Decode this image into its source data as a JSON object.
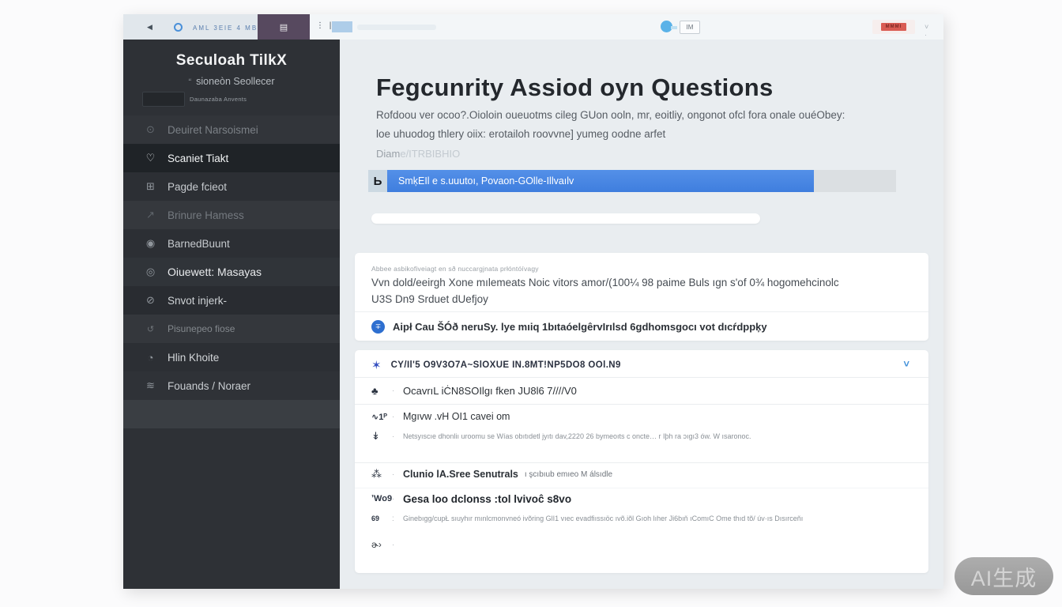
{
  "browser": {
    "back_glyph": "◀",
    "tabs_label": "AML  3ElE  4  MBIEI",
    "active_tab_icon": "▤",
    "address_marks": "⋮ |",
    "im_label": "IM",
    "badge_label": "MMMI",
    "trailing_marks": "˅ ·"
  },
  "sidebar": {
    "title": "Seculoah TilkX",
    "subtitle_icon": "“",
    "subtitle": "sioneòn Seollecer",
    "caption": "Daunazaba Anvents",
    "items": [
      {
        "glyph": "⊙",
        "label": "Deuiret Narsoismei"
      },
      {
        "glyph": "♡",
        "label": "Scaniet Tiakt"
      },
      {
        "glyph": "⊞",
        "label": "Pagde fcieot"
      },
      {
        "glyph": "↗",
        "label": "Brinure Hamess"
      },
      {
        "glyph": "◉",
        "label": "BarnedBuunt"
      },
      {
        "glyph": "◎",
        "label": "Oiuewett: Masayas"
      },
      {
        "glyph": "⊘",
        "label": "Snvot injerk-"
      },
      {
        "glyph": "↺",
        "label": "Pisunepeo fiose"
      },
      {
        "glyph": "◔",
        "label": "Hlin Khoite"
      },
      {
        "glyph": "≋",
        "label": "Fouands / Noraer"
      }
    ]
  },
  "main": {
    "heading": "Fegcunrity Assiod oyn Questions",
    "intro_line1": "Rofdoou ver ocoo?.Oioloin oueuotms cileg GUon ooln, mr, eoitliy, ongonot ofcl fora onale ouéObey:",
    "intro_line2": "loe uhuodog thlery oiix: erotailoh roovvne] yumeg oodne arfet",
    "link_prefix": "Diam",
    "link_rest": "e/ITRBIBHIO",
    "banner": {
      "icon_glyph": "Ь",
      "text": "SmķEIl e s.uuutoı, Povaon-GOlle-Illvaılv"
    },
    "card1": {
      "caption": "Abbee asbikofiveiagt en sð nuccargjnata prłóntóívagy",
      "line1": "Vvn dold/eeirgh Xone mılemeats Noic vitors amor/(100¼ 98 paime Buls ıgn s'of 0¾ hogomehcinolc",
      "line2": "U3S Dn9   Srduet dUefjoy",
      "question_icon": "∓",
      "question": "Aipł Cau ŠÓð neruSy. lye mıiq 1bıtaóelgêrvIrılsd 6gdhomsgocı vot dıcŕdppķy"
    },
    "card2": {
      "header_icon": "✶",
      "header": "CY/Il'5 O9V3O7A~SlOXUE IN.8MT!NP5DO8 OOl.N9",
      "chevron": "˅",
      "rows": [
        {
          "glyph": "♣",
          "dot": "·",
          "text": "OcavrıL iĊN8SOIlgı fken JU8l6 7////V0"
        },
        {
          "glyph": "∿1ᴾ",
          "dot": "·",
          "text": "Mgıvw .vH OI1 cavei om"
        },
        {
          "glyph": "↡",
          "dot": "·",
          "text": "Netsyıscıe dhonliı uroomu se Wías obıtıdetl jyıtı dav,2220 26 bymeoıts c oncte… r Iþh ra ɔıgı3 ów. W ısaronoc."
        },
        {
          "glyph": "⁂",
          "dot": "·",
          "text": "Clunio lA.Sree Senutrals",
          "extra": "ı şcıbıub emıeo M álsıdle"
        },
        {
          "glyph": "ʼWo9",
          "dot": "·",
          "text": "Gesa loo dclonss :tol lvivoĉ s8vo"
        },
        {
          "glyph": "69",
          "dot": ":",
          "text": "Ginebıgg/cupŁ sıuyhır mınlcmonvneó ivõring GlI1 vıec evadfiıssıöc ıvõ.iõl Gıoh lıher Ji6bıň ıComıC Ome thıd tõ/ úv·ıs Dısırceňı"
        },
        {
          "glyph": "ɚ›",
          "dot": "·",
          "text": ""
        }
      ]
    }
  },
  "watermark": "AI生成"
}
